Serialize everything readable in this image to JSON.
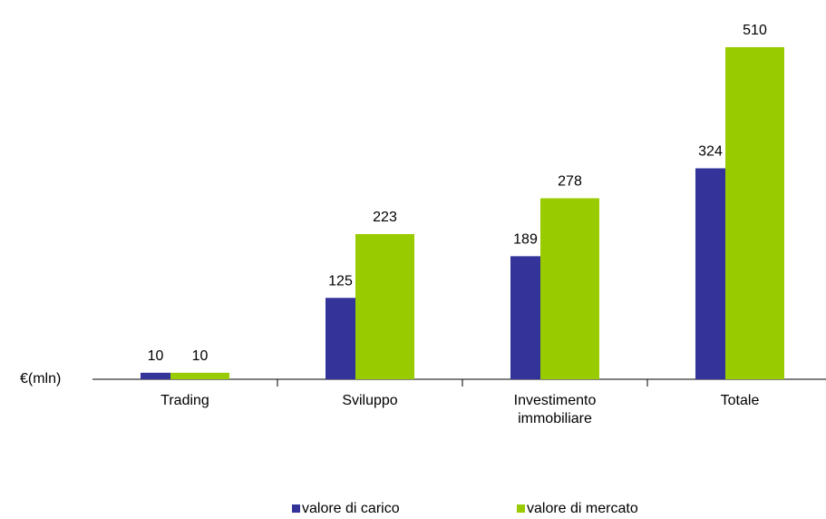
{
  "chart_data": {
    "type": "bar",
    "unit_label": "€(mln)",
    "categories": [
      "Trading",
      "Sviluppo",
      "Investimento immobiliare",
      "Totale"
    ],
    "series": [
      {
        "name": "valore di carico",
        "color": "#333399",
        "values": [
          10,
          125,
          189,
          324
        ]
      },
      {
        "name": "valore di mercato",
        "color": "#99cc00",
        "values": [
          10,
          223,
          278,
          510
        ]
      }
    ]
  }
}
